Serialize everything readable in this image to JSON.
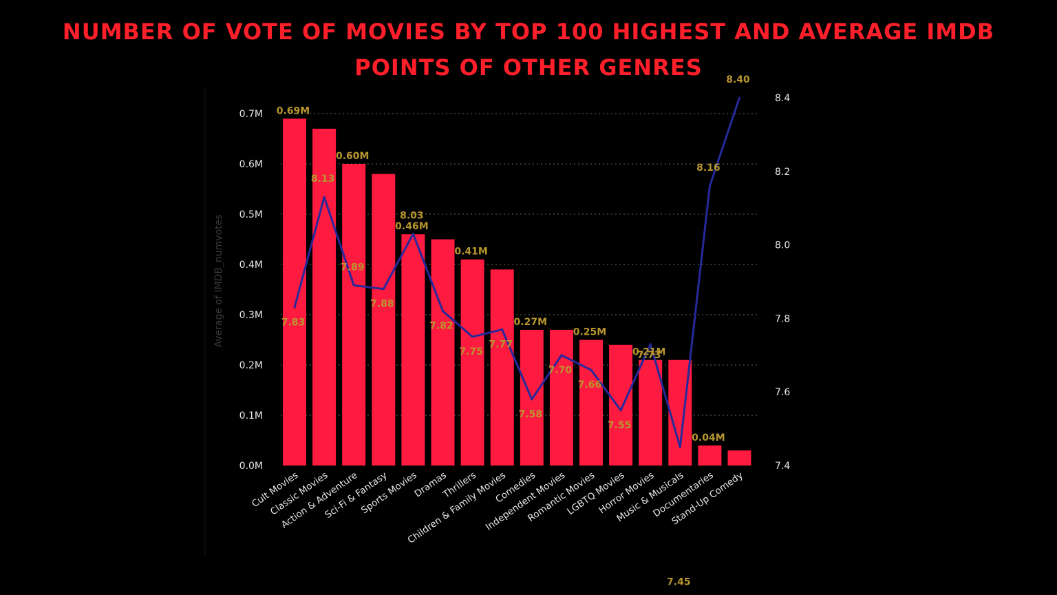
{
  "title": {
    "line1": "NUMBER OF VOTE OF MOVIES BY TOP 100 HIGHEST AND  AVERAGE IMDB",
    "line2": "POINTS OF OTHER GENRES"
  },
  "chart_data": {
    "type": "bar+line",
    "ylabel": "Average of IMDB_numvotes",
    "categories": [
      "Cult Movies",
      "Classic Movies",
      "Action & Adventure",
      "Sci-Fi & Fantasy",
      "Sports Movies",
      "Dramas",
      "Thrillers",
      "Children & Family Movies",
      "Comedies",
      "Independent Movies",
      "Romantic Movies",
      "LGBTQ Movies",
      "Horror Movies",
      "Music & Musicals",
      "Documentaries",
      "Stand-Up Comedy"
    ],
    "bar_series": {
      "values": [
        0.69,
        0.67,
        0.6,
        0.58,
        0.46,
        0.45,
        0.41,
        0.39,
        0.27,
        0.27,
        0.25,
        0.24,
        0.21,
        0.21,
        0.04,
        0.03
      ],
      "labels": [
        "0.69M",
        "",
        "0.60M",
        "",
        "0.46M",
        "",
        "0.41M",
        "",
        "0.27M",
        "",
        "0.25M",
        "",
        "0.21M",
        "",
        "0.04M",
        ""
      ],
      "color": "#ff1a40"
    },
    "line_series": {
      "values": [
        7.83,
        8.13,
        7.89,
        7.88,
        8.03,
        7.82,
        7.75,
        7.77,
        7.58,
        7.7,
        7.66,
        7.55,
        7.73,
        7.45,
        8.16,
        8.4
      ],
      "labels": [
        "7.83",
        "8.13",
        "7.89",
        "7.88",
        "8.03",
        "7.82",
        "7.75",
        "7.77",
        "7.58",
        "7.70",
        "7.66",
        "7.55",
        "7.73",
        "7.45",
        "8.16",
        "8.40"
      ],
      "color": "#27299a"
    },
    "y_left": {
      "range": [
        0,
        0.7
      ],
      "ticks": [
        0,
        0.1,
        0.2,
        0.3,
        0.4,
        0.5,
        0.6,
        0.7
      ],
      "tick_labels": [
        "0.0M",
        "0.1M",
        "0.2M",
        "0.3M",
        "0.4M",
        "0.5M",
        "0.6M",
        "0.7M"
      ]
    },
    "y_right": {
      "range": [
        7.4,
        8.4
      ],
      "ticks": [
        7.4,
        7.6,
        7.8,
        8.0,
        8.2,
        8.4
      ],
      "tick_labels": [
        "7.4",
        "7.6",
        "7.8",
        "8.0",
        "8.2",
        "8.4"
      ]
    },
    "grid": true,
    "label_color": "#b8962e"
  }
}
